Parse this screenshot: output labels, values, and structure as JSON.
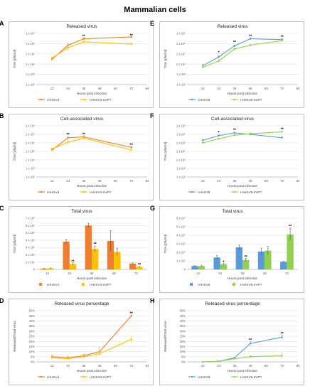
{
  "figure": {
    "title": "Mammalian cells"
  },
  "colors": {
    "orange": "#ED7D31",
    "yellow": "#FFC000",
    "blue": "#5B9BD5",
    "green": "#92D050",
    "grid": "#d9d9d9",
    "axis": "#8c8c8c"
  },
  "chart_data": [
    {
      "panel": "A",
      "type": "line",
      "title": "Released virus",
      "xlabel": "Hours post infection",
      "ylabel": "Titre (pfu/ml)",
      "xlim": [
        0,
        84
      ],
      "xticks": [
        12,
        24,
        36,
        48,
        60,
        72,
        84
      ],
      "yscale": "log",
      "ylim": [
        100,
        10000000
      ],
      "yticks": [
        "1 x 10²",
        "1 x 10³",
        "1 x 10⁴",
        "1 x 10⁵",
        "1 x 10⁶",
        "1 x 10⁷"
      ],
      "legend_position": "bottom",
      "series": [
        {
          "name": "rAHSV4",
          "color": "#ED7D31",
          "x": [
            12,
            24,
            36,
            72
          ],
          "y": [
            30000,
            700000,
            3000000,
            4500000
          ],
          "err": [
            0.1,
            0.15,
            0.15,
            0.1
          ]
        },
        {
          "name": "rAHSV4-sVP7",
          "color": "#FFC000",
          "x": [
            12,
            24,
            36,
            72
          ],
          "y": [
            40000,
            400000,
            1500000,
            900000
          ],
          "err": [
            0.1,
            0.35,
            0.2,
            0.1
          ]
        }
      ],
      "annotations": [
        {
          "x": 36,
          "y": 5000000,
          "text": "**"
        },
        {
          "x": 72,
          "y": 5500000,
          "text": "**"
        }
      ]
    },
    {
      "panel": "B",
      "type": "line",
      "title": "Cell-associated virus",
      "xlabel": "Hours post infection",
      "ylabel": "Titre (pfu/ml)",
      "xlim": [
        0,
        84
      ],
      "xticks": [
        12,
        24,
        36,
        48,
        60,
        72,
        84
      ],
      "yscale": "log",
      "ylim": [
        100,
        100000000
      ],
      "yticks": [
        "1 x 10²",
        "1 x 10³",
        "1 x 10⁴",
        "1 x 10⁵",
        "1 x 10⁶",
        "1 x 10⁷",
        "1 x 10⁸"
      ],
      "legend_position": "bottom",
      "series": [
        {
          "name": "rAHSV4",
          "color": "#ED7D31",
          "x": [
            12,
            24,
            36,
            72
          ],
          "y": [
            150000,
            4000000,
            5000000,
            300000
          ],
          "err": [
            0.1,
            0.15,
            0.15,
            0.1
          ]
        },
        {
          "name": "rAHSV4-sVP7",
          "color": "#FFC000",
          "x": [
            12,
            24,
            36,
            72
          ],
          "y": [
            200000,
            1200000,
            3500000,
            150000
          ],
          "err": [
            0.1,
            0.2,
            0.15,
            0.1
          ]
        }
      ],
      "annotations": [
        {
          "x": 24,
          "y": 8000000,
          "text": "**"
        },
        {
          "x": 36,
          "y": 9000000,
          "text": "**"
        },
        {
          "x": 72,
          "y": 500000,
          "text": "**"
        }
      ]
    },
    {
      "panel": "C",
      "type": "bar",
      "title": "Total virus",
      "xlabel": "Hours post infection",
      "ylabel": "Titre (pfu/ml)",
      "categories": [
        "12",
        "24",
        "36",
        "48",
        "72"
      ],
      "ylim": [
        0,
        7000000
      ],
      "yticks": [
        "0",
        "1 x 10⁶",
        "2 x 10⁶",
        "3 x 10⁶",
        "4 x 10⁶",
        "5 x 10⁶",
        "6 x 10⁶",
        "7 x 10⁶"
      ],
      "legend_position": "bottom",
      "series": [
        {
          "name": "rAHSV4",
          "color": "#ED7D31",
          "values": [
            100000,
            3800000,
            6000000,
            3900000,
            800000
          ],
          "err": [
            50000,
            300000,
            300000,
            1400000,
            100000
          ]
        },
        {
          "name": "rAHSV4-sVP7",
          "color": "#FFC000",
          "values": [
            150000,
            750000,
            2800000,
            2400000,
            350000
          ],
          "err": [
            50000,
            150000,
            400000,
            500000,
            80000
          ]
        }
      ],
      "annotations": [
        {
          "category": "24",
          "series": 1,
          "y": 1000000,
          "text": "**"
        },
        {
          "category": "36",
          "series": 1,
          "y": 3400000,
          "text": "**"
        },
        {
          "category": "72",
          "series": 1,
          "y": 600000,
          "text": "**"
        }
      ]
    },
    {
      "panel": "D",
      "type": "line",
      "title": "Released virus percentage",
      "xlabel": "Hours post infection",
      "ylabel": "Released/Total virus",
      "xlim": [
        0,
        84
      ],
      "xticks": [
        12,
        24,
        36,
        48,
        60,
        72,
        84
      ],
      "ylim": [
        0,
        50
      ],
      "yticks": [
        "0%",
        "5%",
        "10%",
        "15%",
        "20%",
        "25%",
        "30%",
        "35%",
        "40%",
        "45%",
        "50%"
      ],
      "legend_position": "bottom",
      "series": [
        {
          "name": "rAHSV4",
          "color": "#ED7D31",
          "x": [
            12,
            24,
            36,
            48,
            72
          ],
          "y": [
            5,
            4,
            6,
            10,
            45
          ],
          "err": [
            1.5,
            1.5,
            1.5,
            4,
            1
          ]
        },
        {
          "name": "rAHSV4-sVP7",
          "color": "#FFC000",
          "x": [
            12,
            24,
            36,
            48,
            72
          ],
          "y": [
            4,
            3,
            5,
            8,
            22
          ],
          "err": [
            1.5,
            1.5,
            1.5,
            2,
            3
          ]
        }
      ],
      "annotations": [
        {
          "x": 72,
          "y": 47,
          "text": "**"
        }
      ]
    },
    {
      "panel": "E",
      "type": "line",
      "title": "Released virus",
      "xlabel": "Hours post infection",
      "ylabel": "Titre (pfu/ml)",
      "xlim": [
        0,
        84
      ],
      "xticks": [
        12,
        24,
        36,
        48,
        60,
        72,
        84
      ],
      "yscale": "log",
      "ylim": [
        100,
        10000000
      ],
      "yticks": [
        "1 x 10²",
        "1 x 10³",
        "1 x 10⁴",
        "1 x 10⁵",
        "1 x 10⁶",
        "1 x 10⁷"
      ],
      "legend_position": "bottom",
      "series": [
        {
          "name": "rAHSV5",
          "color": "#5B9BD5",
          "x": [
            12,
            24,
            36,
            48,
            72
          ],
          "y": [
            7000,
            50000,
            600000,
            3000000,
            2500000
          ],
          "err": [
            0.15,
            0.15,
            0.1,
            0.1,
            0.1
          ]
        },
        {
          "name": "rAHSV5-sVP7",
          "color": "#92D050",
          "x": [
            12,
            24,
            36,
            48,
            72
          ],
          "y": [
            5000,
            20000,
            300000,
            700000,
            2000000
          ],
          "err": [
            0.15,
            0.15,
            0.1,
            0.1,
            0.15
          ]
        }
      ],
      "annotations": [
        {
          "x": 24,
          "y": 120000,
          "text": "*"
        },
        {
          "x": 36,
          "y": 1300000,
          "text": "**"
        },
        {
          "x": 48,
          "y": 5000000,
          "text": "**"
        },
        {
          "x": 72,
          "y": 4000000,
          "text": "**"
        }
      ]
    },
    {
      "panel": "F",
      "type": "line",
      "title": "Cell-associated virus",
      "xlabel": "Hours post infection",
      "ylabel": "Titre (pfu/ml)",
      "xlim": [
        0,
        84
      ],
      "xticks": [
        12,
        24,
        36,
        48,
        60,
        72,
        84
      ],
      "yscale": "log",
      "ylim": [
        100,
        100000000
      ],
      "yticks": [
        "1 x 10²",
        "1 x 10³",
        "1 x 10⁴",
        "1 x 10⁵",
        "1 x 10⁶",
        "1 x 10⁷",
        "1 x 10⁸"
      ],
      "legend_position": "bottom",
      "series": [
        {
          "name": "rAHSV5",
          "color": "#5B9BD5",
          "x": [
            12,
            24,
            36,
            48,
            72
          ],
          "y": [
            2000000,
            7000000,
            15000000,
            10000000,
            4000000
          ],
          "err": [
            0.1,
            0.1,
            0.1,
            0.1,
            0.1
          ]
        },
        {
          "name": "rAHSV5-sVP7",
          "color": "#92D050",
          "x": [
            12,
            24,
            36,
            48,
            72
          ],
          "y": [
            1000000,
            3000000,
            8000000,
            12000000,
            20000000
          ],
          "err": [
            0.1,
            0.1,
            0.1,
            0.1,
            0.1
          ]
        }
      ],
      "annotations": [
        {
          "x": 24,
          "y": 14000000,
          "text": "*"
        },
        {
          "x": 36,
          "y": 28000000,
          "text": "**"
        },
        {
          "x": 72,
          "y": 35000000,
          "text": "**"
        }
      ]
    },
    {
      "panel": "G",
      "type": "bar",
      "title": "Total virus",
      "xlabel": "Hours post infection",
      "ylabel": "Titre (pfu/ml)",
      "categories": [
        "12",
        "24",
        "36",
        "48",
        "72"
      ],
      "ylim": [
        0,
        60000000
      ],
      "yticks": [
        "0",
        "1 x 10⁷",
        "2 x 10⁷",
        "3 x 10⁷",
        "4 x 10⁷",
        "5 x 10⁷",
        "6 x 10⁷"
      ],
      "legend_position": "bottom",
      "series": [
        {
          "name": "rAHSV5",
          "color": "#5B9BD5",
          "values": [
            4000000,
            14000000,
            26000000,
            21000000,
            9000000
          ],
          "err": [
            500000,
            2000000,
            3000000,
            4000000,
            500000
          ]
        },
        {
          "name": "rAHSV5-sVP7",
          "color": "#92D050",
          "values": [
            4000000,
            6000000,
            11000000,
            22000000,
            41000000
          ],
          "err": [
            1000000,
            1000000,
            2000000,
            5000000,
            7000000
          ]
        }
      ],
      "annotations": [
        {
          "category": "24",
          "series": 1,
          "y": 8000000,
          "text": "*"
        },
        {
          "category": "36",
          "series": 1,
          "y": 14000000,
          "text": "**"
        },
        {
          "category": "72",
          "series": 1,
          "y": 50000000,
          "text": "**"
        }
      ]
    },
    {
      "panel": "H",
      "type": "line",
      "title": "Released virus percentage",
      "xlabel": "Hours post infection",
      "ylabel": "Released/Total virus",
      "xlim": [
        0,
        84
      ],
      "xticks": [
        12,
        24,
        36,
        48,
        60,
        72,
        84
      ],
      "ylim": [
        0,
        50
      ],
      "yticks": [
        "0%",
        "5%",
        "10%",
        "15%",
        "20%",
        "25%",
        "30%",
        "35%",
        "40%",
        "45%",
        "50%"
      ],
      "legend_position": "bottom",
      "series": [
        {
          "name": "rAHSV5",
          "color": "#5B9BD5",
          "x": [
            12,
            24,
            36,
            48,
            72
          ],
          "y": [
            0,
            0.5,
            4,
            18,
            24
          ],
          "err": [
            0.3,
            0.3,
            0.5,
            2,
            2
          ]
        },
        {
          "name": "rAHSV5-sVP7",
          "color": "#92D050",
          "x": [
            12,
            24,
            36,
            48,
            72
          ],
          "y": [
            0,
            0.5,
            3,
            5,
            6
          ],
          "err": [
            0.3,
            0.3,
            0.5,
            1,
            3
          ]
        }
      ],
      "annotations": [
        {
          "x": 48,
          "y": 21,
          "text": "**"
        },
        {
          "x": 72,
          "y": 27,
          "text": "**"
        }
      ]
    }
  ]
}
